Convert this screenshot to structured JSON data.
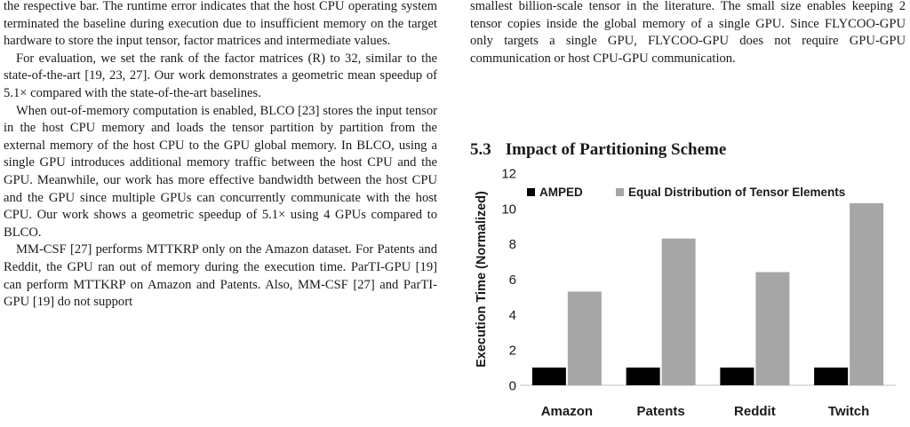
{
  "left_column": {
    "paragraphs": [
      "the respective bar. The runtime error indicates that the host CPU operating system terminated the baseline during execution due to insufficient memory on the target hardware to store the input tensor, factor matrices and intermediate values.",
      "For evaluation, we set the rank of the factor matrices (R) to 32, similar to the state-of-the-art [19, 23, 27]. Our work demonstrates a geometric mean speedup of 5.1× compared with the state-of-the-art baselines.",
      "When out-of-memory computation is enabled, BLCO [23] stores the input tensor in the host CPU memory and loads the tensor partition by partition from the external memory of the host CPU to the GPU global memory. In BLCO, using a single GPU introduces additional memory traffic between the host CPU and the GPU. Meanwhile, our work has more effective bandwidth between the host CPU and the GPU since multiple GPUs can concurrently communicate with the host CPU. Our work shows a geometric speedup of 5.1× using 4 GPUs compared to BLCO.",
      "MM-CSF [27] performs MTTKRP only on the Amazon dataset. For Patents and Reddit, the GPU ran out of memory during the execution time. ParTI-GPU [19] can perform MTTKRP on Amazon and Patents. Also, MM-CSF [27] and ParTI-GPU [19] do not support"
    ]
  },
  "right_column": {
    "paragraph": "smallest billion-scale tensor in the literature. The small size enables keeping 2 tensor copies inside the global memory of a single GPU. Since FLYCOO-GPU only targets a single GPU, FLYCOO-GPU does not require GPU-GPU communication or host CPU-GPU communication.",
    "section": {
      "number": "5.3",
      "title": "Impact of Partitioning Scheme"
    }
  },
  "chart_data": {
    "type": "bar",
    "categories": [
      "Amazon",
      "Patents",
      "Reddit",
      "Twitch"
    ],
    "series": [
      {
        "name": "AMPED",
        "values": [
          1,
          1,
          1,
          1
        ],
        "color": "#000000"
      },
      {
        "name": "Equal Distribution of Tensor Elements",
        "values": [
          5.3,
          8.3,
          6.4,
          10.3
        ],
        "color": "#a6a6a6"
      }
    ],
    "ylabel": "Execution Time (Normalized)",
    "xlabel": "",
    "ylim": [
      0,
      12
    ],
    "yticks": [
      0,
      2,
      4,
      6,
      8,
      10,
      12
    ],
    "grid": false,
    "legend_position": "top-left"
  }
}
